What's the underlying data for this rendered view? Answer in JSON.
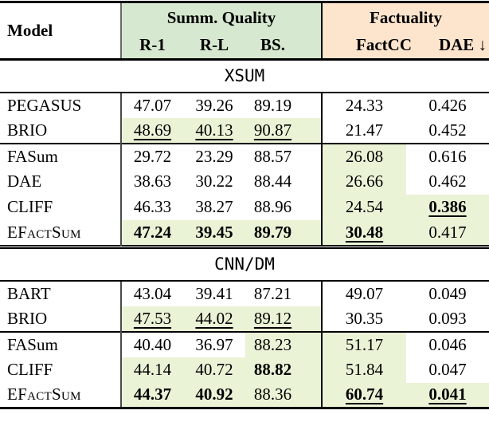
{
  "colors": {
    "header_green": "#d6e8cf",
    "header_orange": "#fce4cd",
    "row_highlight": "#eaf3d6"
  },
  "header": {
    "model": "Model",
    "groups": [
      {
        "label": "Summ. Quality"
      },
      {
        "label": "Factuality"
      }
    ],
    "columns": [
      "R-1",
      "R-L",
      "BS.",
      "FactCC",
      "DAE ↓"
    ]
  },
  "sections": [
    {
      "label": "XSUM",
      "blocks": [
        [
          {
            "model": "PEGASUS",
            "sc": false,
            "cells": [
              {
                "v": "47.07"
              },
              {
                "v": "39.26"
              },
              {
                "v": "89.19"
              },
              {
                "v": "24.33"
              },
              {
                "v": "0.426"
              }
            ]
          },
          {
            "model": "BRIO",
            "sc": false,
            "cells": [
              {
                "v": "48.69",
                "u": true,
                "hl": true
              },
              {
                "v": "40.13",
                "u": true,
                "hl": true
              },
              {
                "v": "90.87",
                "u": true,
                "hl": true
              },
              {
                "v": "21.47"
              },
              {
                "v": "0.452"
              }
            ]
          }
        ],
        [
          {
            "model": "FASum",
            "sc": false,
            "cells": [
              {
                "v": "29.72"
              },
              {
                "v": "23.29"
              },
              {
                "v": "88.57"
              },
              {
                "v": "26.08",
                "hl": true
              },
              {
                "v": "0.616"
              }
            ]
          },
          {
            "model": "DAE",
            "sc": false,
            "cells": [
              {
                "v": "38.63"
              },
              {
                "v": "30.22"
              },
              {
                "v": "88.44"
              },
              {
                "v": "26.66",
                "hl": true
              },
              {
                "v": "0.462"
              }
            ]
          },
          {
            "model": "CLIFF",
            "sc": false,
            "cells": [
              {
                "v": "46.33"
              },
              {
                "v": "38.27"
              },
              {
                "v": "88.96"
              },
              {
                "v": "24.54",
                "hl": true
              },
              {
                "v": "0.386",
                "b": true,
                "u": true,
                "hl": true
              }
            ]
          },
          {
            "model": "EFactSum",
            "sc": true,
            "cells": [
              {
                "v": "47.24",
                "b": true,
                "hl": true
              },
              {
                "v": "39.45",
                "b": true,
                "hl": true
              },
              {
                "v": "89.79",
                "b": true,
                "hl": true
              },
              {
                "v": "30.48",
                "b": true,
                "u": true,
                "hl": true
              },
              {
                "v": "0.417",
                "hl": true
              }
            ]
          }
        ]
      ]
    },
    {
      "label": "CNN/DM",
      "blocks": [
        [
          {
            "model": "BART",
            "sc": false,
            "cells": [
              {
                "v": "43.04"
              },
              {
                "v": "39.41"
              },
              {
                "v": "87.21"
              },
              {
                "v": "49.07"
              },
              {
                "v": "0.049"
              }
            ]
          },
          {
            "model": "BRIO",
            "sc": false,
            "cells": [
              {
                "v": "47.53",
                "u": true,
                "hl": true
              },
              {
                "v": "44.02",
                "u": true,
                "hl": true
              },
              {
                "v": "89.12",
                "u": true,
                "hl": true
              },
              {
                "v": "30.35"
              },
              {
                "v": "0.093"
              }
            ]
          }
        ],
        [
          {
            "model": "FASum",
            "sc": false,
            "cells": [
              {
                "v": "40.40"
              },
              {
                "v": "36.97"
              },
              {
                "v": "88.23",
                "hl": true
              },
              {
                "v": "51.17",
                "hl": true
              },
              {
                "v": "0.046"
              }
            ]
          },
          {
            "model": "CLIFF",
            "sc": false,
            "cells": [
              {
                "v": "44.14",
                "hl": true
              },
              {
                "v": "40.72",
                "hl": true
              },
              {
                "v": "88.82",
                "b": true,
                "hl": true
              },
              {
                "v": "51.84",
                "hl": true
              },
              {
                "v": "0.047"
              }
            ]
          },
          {
            "model": "EFactSum",
            "sc": true,
            "cells": [
              {
                "v": "44.37",
                "b": true,
                "hl": true
              },
              {
                "v": "40.92",
                "b": true,
                "hl": true
              },
              {
                "v": "88.36",
                "hl": true
              },
              {
                "v": "60.74",
                "b": true,
                "u": true,
                "hl": true
              },
              {
                "v": "0.041",
                "b": true,
                "u": true,
                "hl": true
              }
            ]
          }
        ]
      ]
    }
  ]
}
